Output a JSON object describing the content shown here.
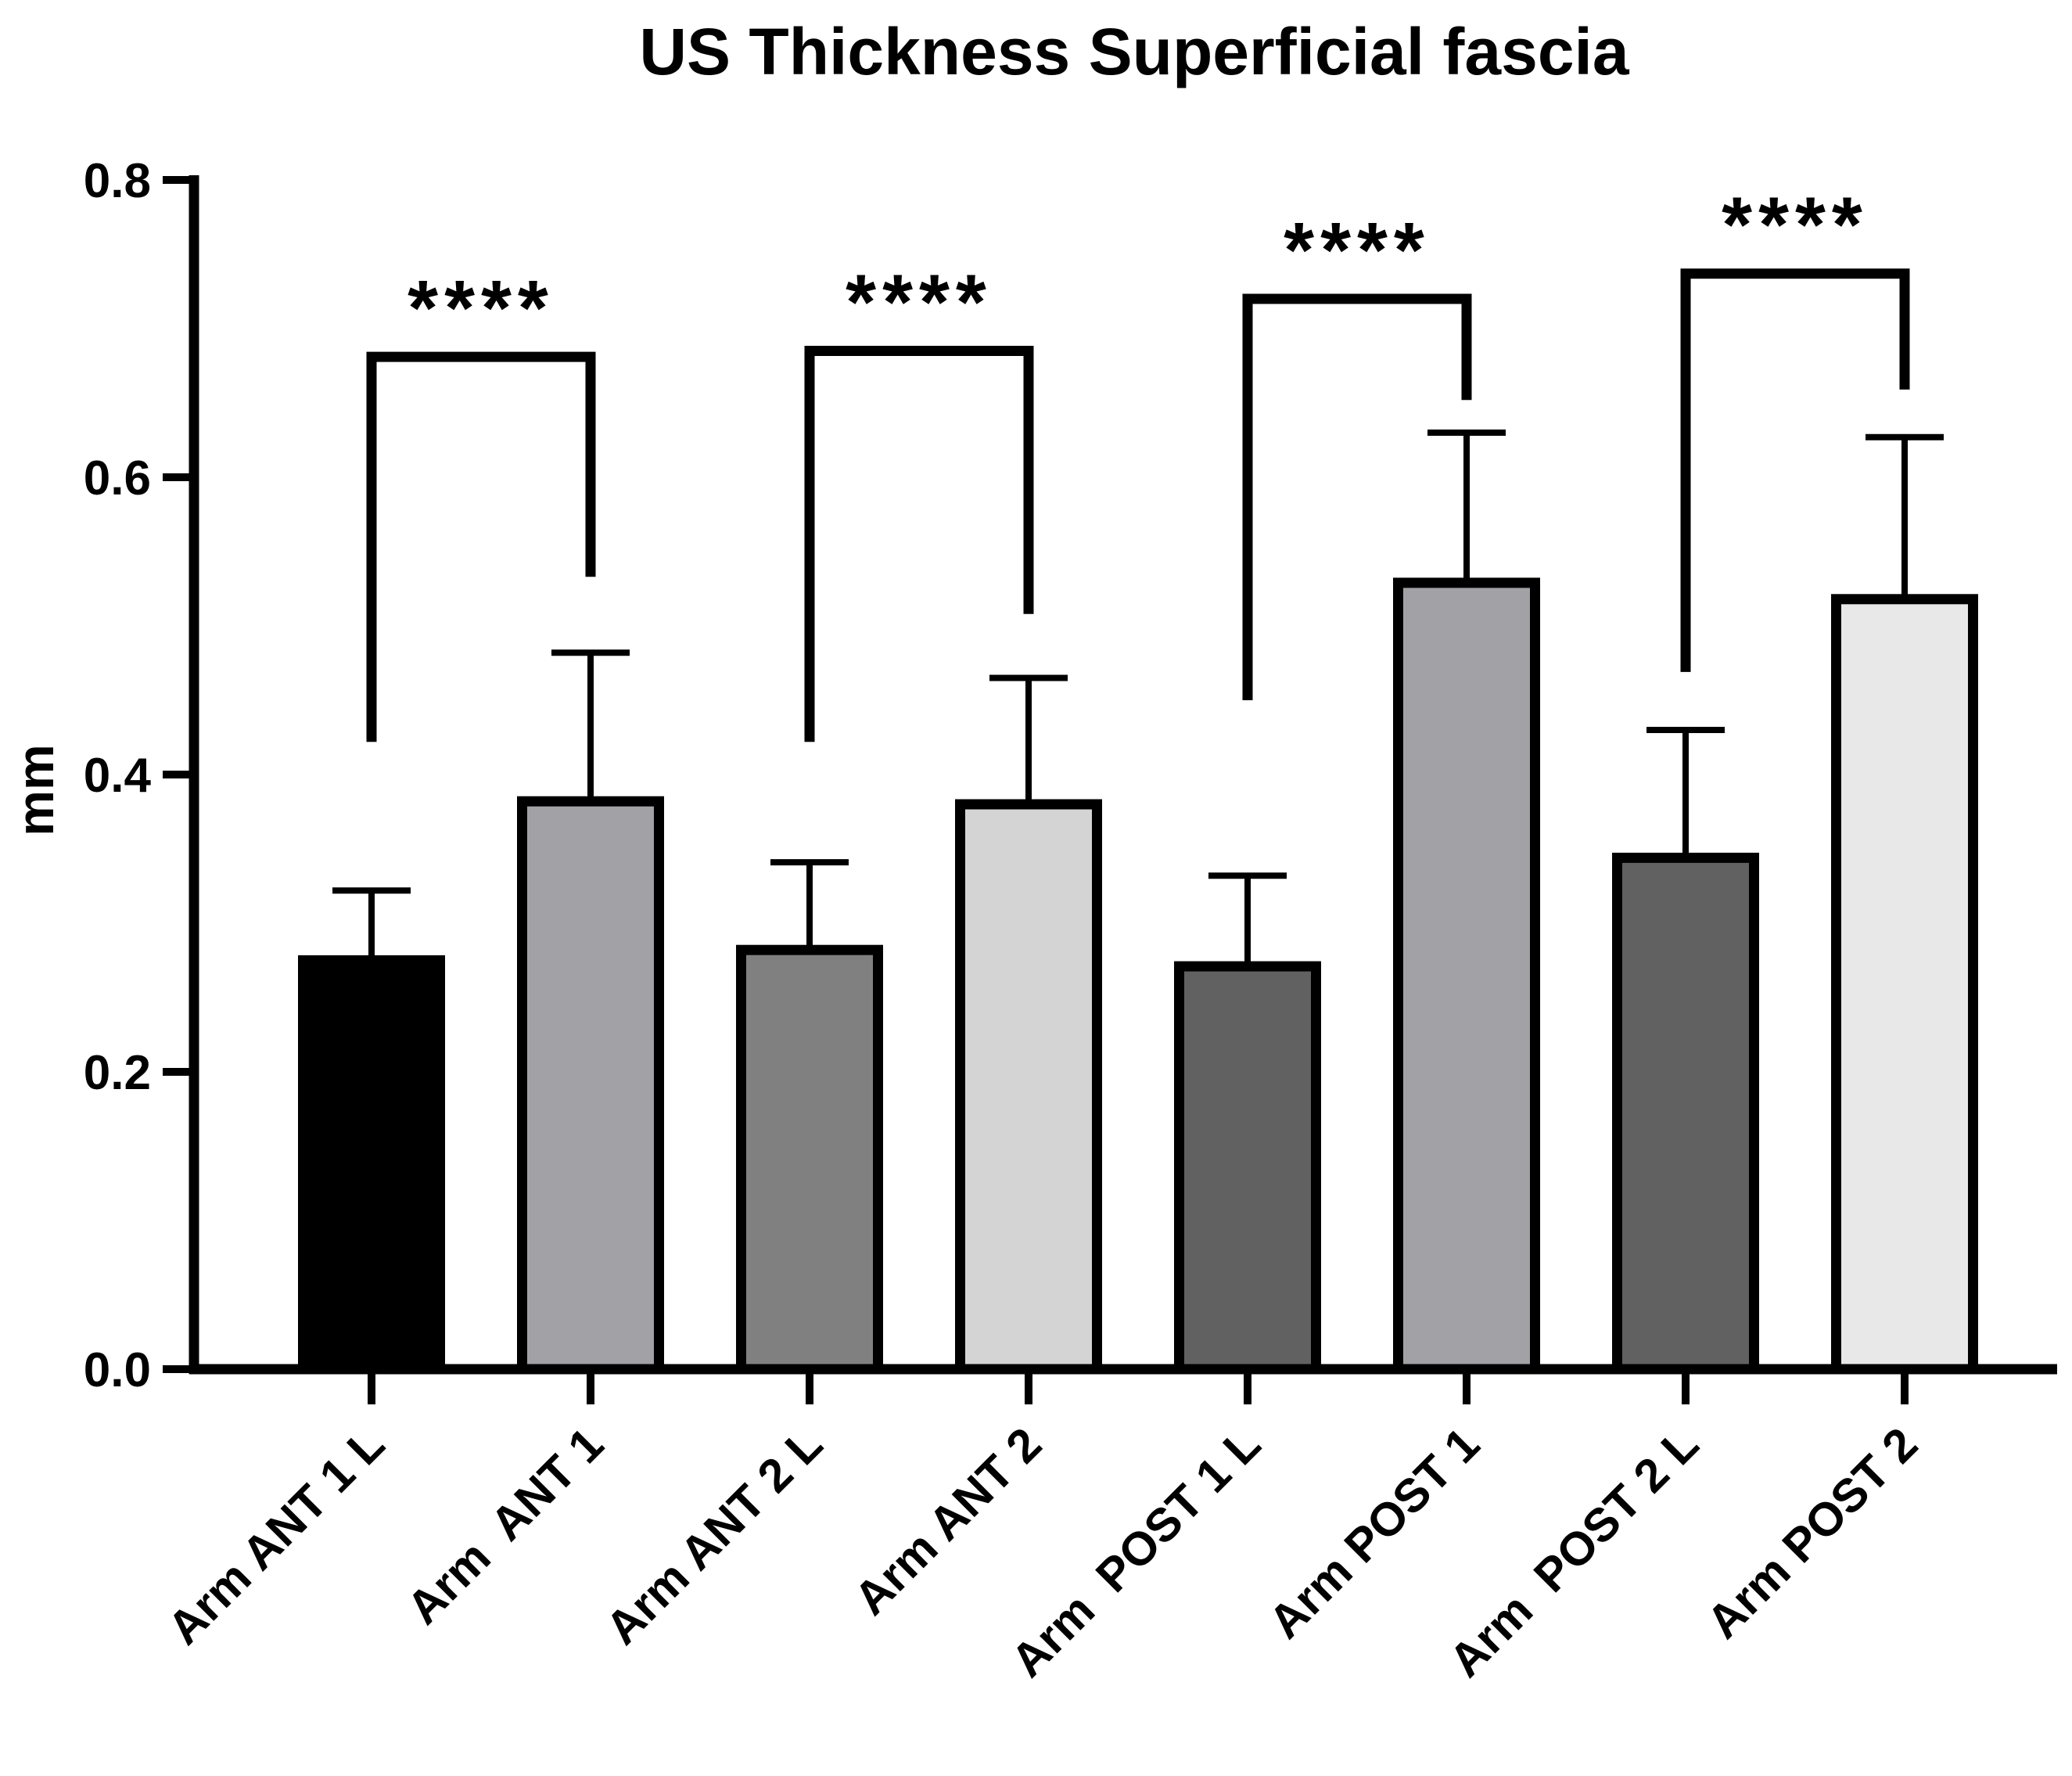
{
  "chart_data": {
    "type": "bar",
    "title": "US Thickness Superficial fascia",
    "xlabel": "",
    "ylabel": "mm",
    "ylim": [
      0,
      0.8
    ],
    "yticks": [
      "0.0",
      "0.2",
      "0.4",
      "0.6",
      "0.8"
    ],
    "ytick_values": [
      0,
      0.2,
      0.4,
      0.6,
      0.8
    ],
    "grid": false,
    "categories": [
      "Arm ANT 1 L",
      "Arm  ANT 1",
      "Arm ANT 2 L",
      "Arm ANT 2",
      "Arm  POST 1 L",
      "Arm POST 1",
      "Arm  POST 2 L",
      "Arm POST 2"
    ],
    "values": [
      0.275,
      0.382,
      0.282,
      0.38,
      0.271,
      0.529,
      0.344,
      0.518
    ],
    "errors_upper": [
      0.322,
      0.482,
      0.341,
      0.465,
      0.332,
      0.63,
      0.43,
      0.627
    ],
    "colors": [
      "#000000",
      "#a2a2a6",
      "#808080",
      "#d4d4d4",
      "#616161",
      "#a2a2a6",
      "#616161",
      "#e8e8e8"
    ],
    "significance": [
      {
        "left": 0,
        "right": 1,
        "label": "****",
        "height": 0.681,
        "left_end": 0.422,
        "right_end": 0.533
      },
      {
        "left": 2,
        "right": 3,
        "label": "****",
        "height": 0.685,
        "left_end": 0.422,
        "right_end": 0.508
      },
      {
        "left": 4,
        "right": 5,
        "label": "****",
        "height": 0.72,
        "left_end": 0.45,
        "right_end": 0.652
      },
      {
        "left": 6,
        "right": 7,
        "label": "****",
        "height": 0.737,
        "left_end": 0.469,
        "right_end": 0.659
      }
    ]
  }
}
